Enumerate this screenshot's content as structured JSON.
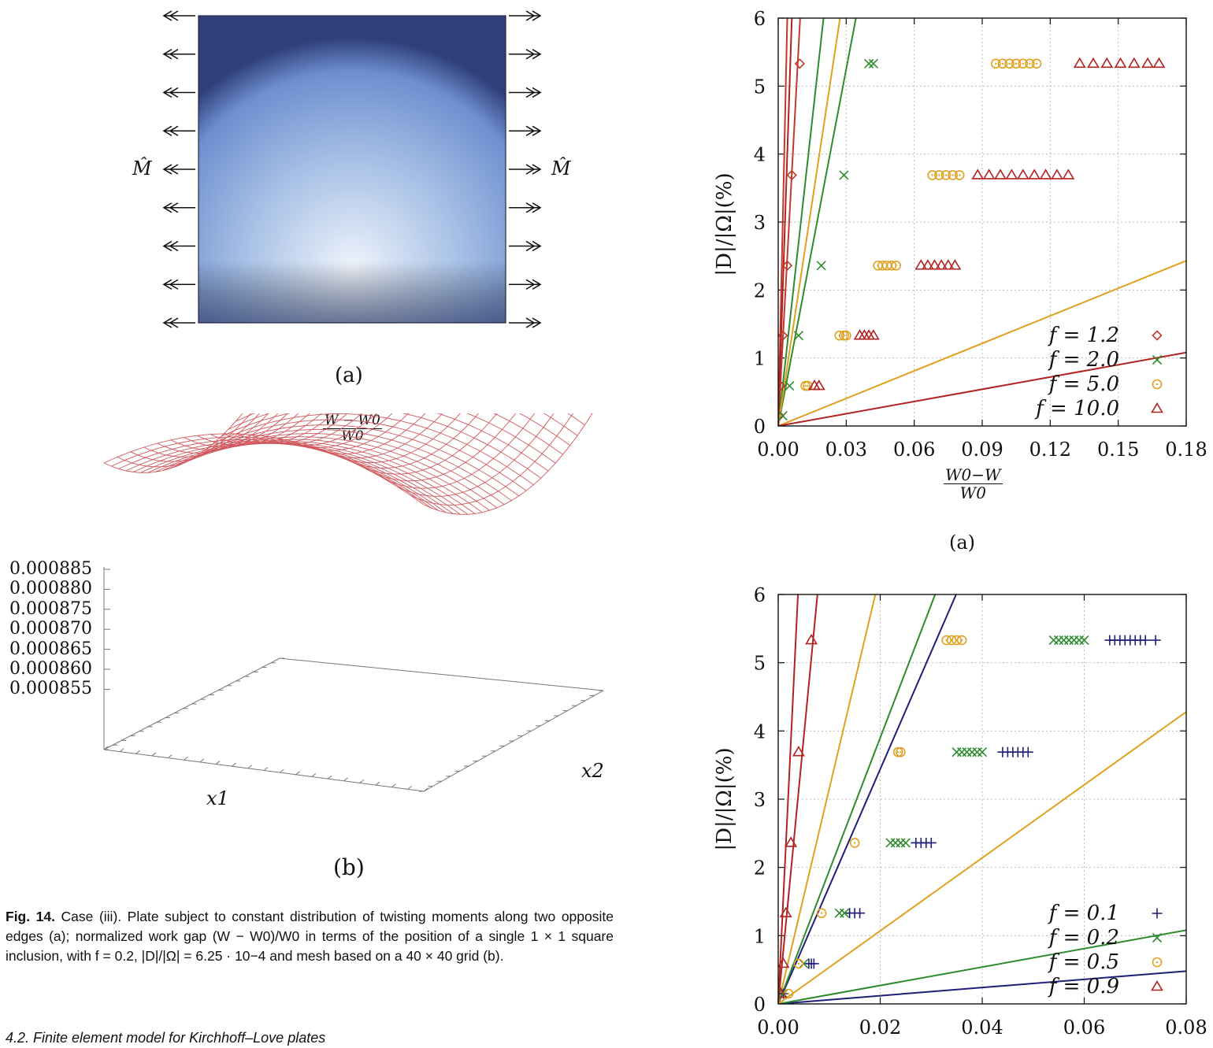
{
  "figure_a": {
    "label": "(a)",
    "moment_left": "M̂",
    "moment_right": "M̂",
    "plate_gradient": [
      "#eef3fb",
      "#a9c2e6",
      "#6d8fcf",
      "#2f3f7a"
    ]
  },
  "figure_b": {
    "label": "(b)",
    "title_num": "W − W0",
    "title_den": "W0",
    "z_ticks": [
      "0.000885",
      "0.000880",
      "0.000875",
      "0.000870",
      "0.000865",
      "0.000860",
      "0.000855"
    ],
    "x1_label": "x1",
    "x2_label": "x2",
    "mesh_color": "#d0595e"
  },
  "caption": {
    "fig_label": "Fig. 14.",
    "text": "Case (iii). Plate subject to constant distribution of twisting moments along two opposite edges (a); normalized work gap (W − W0)/W0 in terms of the position of a single 1 × 1 square inclusion, with f = 0.2, |D|/|Ω| = 6.25 · 10−4 and mesh based on a 40 × 40 grid (b)."
  },
  "footer_text": "4.2. Finite element model for Kirchhoff–Love plates",
  "chart_data": [
    {
      "type": "scatter",
      "label": "(a)",
      "ylabel": "|D|/|Ω|(%)",
      "xlabel_num": "W0−W",
      "xlabel_den": "W0",
      "xlim": [
        0,
        0.18
      ],
      "ylim": [
        0,
        6
      ],
      "x_ticks": [
        "0.00",
        "0.03",
        "0.06",
        "0.09",
        "0.12",
        "0.15",
        "0.18"
      ],
      "y_ticks": [
        "0",
        "1",
        "2",
        "3",
        "4",
        "5",
        "6"
      ],
      "grid": true,
      "legend_position": "bottom-right",
      "series": [
        {
          "name": "f = 1.2",
          "color": "#c0392b",
          "marker": "diamond",
          "points": [
            [
              0.0005,
              0.15
            ],
            [
              0.001,
              0.59
            ],
            [
              0.002,
              1.33
            ],
            [
              0.004,
              2.36
            ],
            [
              0.006,
              3.69
            ],
            [
              0.0095,
              5.33
            ]
          ],
          "line_slopes": [
            1500,
            620
          ]
        },
        {
          "name": "f = 2.0",
          "color": "#2e8b2e",
          "marker": "cross",
          "points": [
            [
              0.002,
              0.15
            ],
            [
              0.005,
              0.59
            ],
            [
              0.009,
              1.33
            ],
            [
              0.019,
              2.36
            ],
            [
              0.029,
              3.69
            ],
            [
              0.04,
              5.33
            ],
            [
              0.042,
              5.33
            ]
          ],
          "line_slopes": [
            300,
            175
          ]
        },
        {
          "name": "f = 5.0",
          "color": "#e0a020",
          "marker": "circle",
          "points": [
            [
              0.012,
              0.59
            ],
            [
              0.013,
              0.59
            ],
            [
              0.027,
              1.33
            ],
            [
              0.029,
              1.33
            ],
            [
              0.03,
              1.33
            ],
            [
              0.044,
              2.36
            ],
            [
              0.046,
              2.36
            ],
            [
              0.048,
              2.36
            ],
            [
              0.05,
              2.36
            ],
            [
              0.052,
              2.36
            ],
            [
              0.068,
              3.69
            ],
            [
              0.071,
              3.69
            ],
            [
              0.074,
              3.69
            ],
            [
              0.077,
              3.69
            ],
            [
              0.08,
              3.69
            ],
            [
              0.096,
              5.33
            ],
            [
              0.099,
              5.33
            ],
            [
              0.102,
              5.33
            ],
            [
              0.105,
              5.33
            ],
            [
              0.108,
              5.33
            ],
            [
              0.111,
              5.33
            ],
            [
              0.114,
              5.33
            ]
          ],
          "line_slopes": [
            220,
            13.5
          ]
        },
        {
          "name": "f = 10.0",
          "color": "#b22222",
          "marker": "triangle",
          "points": [
            [
              0.016,
              0.59
            ],
            [
              0.018,
              0.59
            ],
            [
              0.036,
              1.33
            ],
            [
              0.038,
              1.33
            ],
            [
              0.04,
              1.33
            ],
            [
              0.042,
              1.33
            ],
            [
              0.063,
              2.36
            ],
            [
              0.066,
              2.36
            ],
            [
              0.069,
              2.36
            ],
            [
              0.072,
              2.36
            ],
            [
              0.075,
              2.36
            ],
            [
              0.078,
              2.36
            ],
            [
              0.088,
              3.69
            ],
            [
              0.093,
              3.69
            ],
            [
              0.098,
              3.69
            ],
            [
              0.103,
              3.69
            ],
            [
              0.108,
              3.69
            ],
            [
              0.113,
              3.69
            ],
            [
              0.118,
              3.69
            ],
            [
              0.123,
              3.69
            ],
            [
              0.128,
              3.69
            ],
            [
              0.133,
              5.33
            ],
            [
              0.139,
              5.33
            ],
            [
              0.145,
              5.33
            ],
            [
              0.151,
              5.33
            ],
            [
              0.157,
              5.33
            ],
            [
              0.163,
              5.33
            ],
            [
              0.168,
              5.33
            ]
          ],
          "line_slopes": [
            1000,
            6.0
          ]
        }
      ]
    },
    {
      "type": "scatter",
      "label": "",
      "ylabel": "|D|/|Ω|(%)",
      "xlim": [
        0,
        0.08
      ],
      "ylim": [
        0,
        6
      ],
      "x_ticks": [
        "0.00",
        "0.02",
        "0.04",
        "0.06",
        "0.08"
      ],
      "y_ticks": [
        "0",
        "1",
        "2",
        "3",
        "4",
        "5",
        "6"
      ],
      "grid": true,
      "legend_position": "bottom-right",
      "series": [
        {
          "name": "f = 0.1",
          "color": "#1f1f7a",
          "marker": "plus",
          "points": [
            [
              0.001,
              0.15
            ],
            [
              0.006,
              0.59
            ],
            [
              0.0065,
              0.59
            ],
            [
              0.007,
              0.59
            ],
            [
              0.014,
              1.33
            ],
            [
              0.015,
              1.33
            ],
            [
              0.016,
              1.33
            ],
            [
              0.027,
              2.36
            ],
            [
              0.028,
              2.36
            ],
            [
              0.029,
              2.36
            ],
            [
              0.03,
              2.36
            ],
            [
              0.044,
              3.69
            ],
            [
              0.045,
              3.69
            ],
            [
              0.046,
              3.69
            ],
            [
              0.047,
              3.69
            ],
            [
              0.048,
              3.69
            ],
            [
              0.049,
              3.69
            ],
            [
              0.065,
              5.33
            ],
            [
              0.066,
              5.33
            ],
            [
              0.067,
              5.33
            ],
            [
              0.068,
              5.33
            ],
            [
              0.069,
              5.33
            ],
            [
              0.07,
              5.33
            ],
            [
              0.071,
              5.33
            ],
            [
              0.072,
              5.33
            ],
            [
              0.074,
              5.33
            ]
          ],
          "line_slopes": [
            172,
            6.0
          ]
        },
        {
          "name": "f = 0.2",
          "color": "#2e8b2e",
          "marker": "cross",
          "points": [
            [
              0.001,
              0.15
            ],
            [
              0.005,
              0.59
            ],
            [
              0.012,
              1.33
            ],
            [
              0.013,
              1.33
            ],
            [
              0.022,
              2.36
            ],
            [
              0.023,
              2.36
            ],
            [
              0.024,
              2.36
            ],
            [
              0.025,
              2.36
            ],
            [
              0.035,
              3.69
            ],
            [
              0.036,
              3.69
            ],
            [
              0.037,
              3.69
            ],
            [
              0.038,
              3.69
            ],
            [
              0.039,
              3.69
            ],
            [
              0.04,
              3.69
            ],
            [
              0.054,
              5.33
            ],
            [
              0.055,
              5.33
            ],
            [
              0.056,
              5.33
            ],
            [
              0.057,
              5.33
            ],
            [
              0.058,
              5.33
            ],
            [
              0.059,
              5.33
            ],
            [
              0.06,
              5.33
            ]
          ],
          "line_slopes": [
            195,
            13.5
          ]
        },
        {
          "name": "f = 0.5",
          "color": "#e0a020",
          "marker": "circle",
          "points": [
            [
              0.002,
              0.15
            ],
            [
              0.004,
              0.59
            ],
            [
              0.0085,
              1.33
            ],
            [
              0.015,
              2.36
            ],
            [
              0.0235,
              3.69
            ],
            [
              0.024,
              3.69
            ],
            [
              0.033,
              5.33
            ],
            [
              0.034,
              5.33
            ],
            [
              0.035,
              5.33
            ],
            [
              0.036,
              5.33
            ]
          ],
          "line_slopes": [
            315,
            53.5
          ]
        },
        {
          "name": "f = 0.9",
          "color": "#b22222",
          "marker": "triangle",
          "points": [
            [
              0.0005,
              0.15
            ],
            [
              0.001,
              0.59
            ],
            [
              0.0015,
              1.33
            ],
            [
              0.0025,
              2.36
            ],
            [
              0.004,
              3.69
            ],
            [
              0.0065,
              5.33
            ]
          ],
          "line_slopes": [
            1550,
            780
          ]
        }
      ]
    }
  ]
}
